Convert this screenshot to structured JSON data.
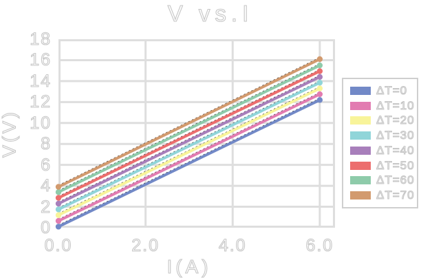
{
  "chart_data": {
    "type": "line",
    "title": "V vs.I",
    "xlabel": "I(A)",
    "ylabel": "V(V)",
    "xlim": [
      0,
      6.35
    ],
    "ylim": [
      0,
      18
    ],
    "x": [
      0,
      6
    ],
    "x_tick_values": [
      0,
      2,
      4,
      6
    ],
    "x_tick_labels": [
      "0.0",
      "2.0",
      "4.0",
      "6.0"
    ],
    "y_tick_values": [
      0,
      2,
      4,
      6,
      8,
      10,
      12,
      14,
      16,
      18
    ],
    "y_tick_labels": [
      "0",
      "2",
      "4",
      "6",
      "8",
      "10",
      "12",
      "14",
      "16",
      "18"
    ],
    "grid": true,
    "legend_position": "right",
    "has_dashed_fit_lines": true,
    "colors": {
      "grid": "#dedede",
      "text": "#c6c6c6",
      "fit_line": "#222222",
      "legend_border": "#cfcfcf",
      "background": "#ffffff"
    },
    "series": [
      {
        "name": "ΔT=0",
        "color": "#7289c7",
        "values": [
          0.1,
          12.2
        ]
      },
      {
        "name": "ΔT=10",
        "color": "#e27cb1",
        "values": [
          0.65,
          12.75
        ]
      },
      {
        "name": "ΔT=20",
        "color": "#f8f49a",
        "values": [
          1.2,
          13.3
        ]
      },
      {
        "name": "ΔT=30",
        "color": "#90d5d9",
        "values": [
          1.75,
          13.85
        ]
      },
      {
        "name": "ΔT=40",
        "color": "#a87fbb",
        "values": [
          2.3,
          14.4
        ]
      },
      {
        "name": "ΔT=50",
        "color": "#ec6e6e",
        "values": [
          2.85,
          14.95
        ]
      },
      {
        "name": "ΔT=60",
        "color": "#8ecbaa",
        "values": [
          3.4,
          15.5
        ]
      },
      {
        "name": "ΔT=70",
        "color": "#d29a6e",
        "values": [
          3.9,
          16.1
        ]
      }
    ]
  }
}
